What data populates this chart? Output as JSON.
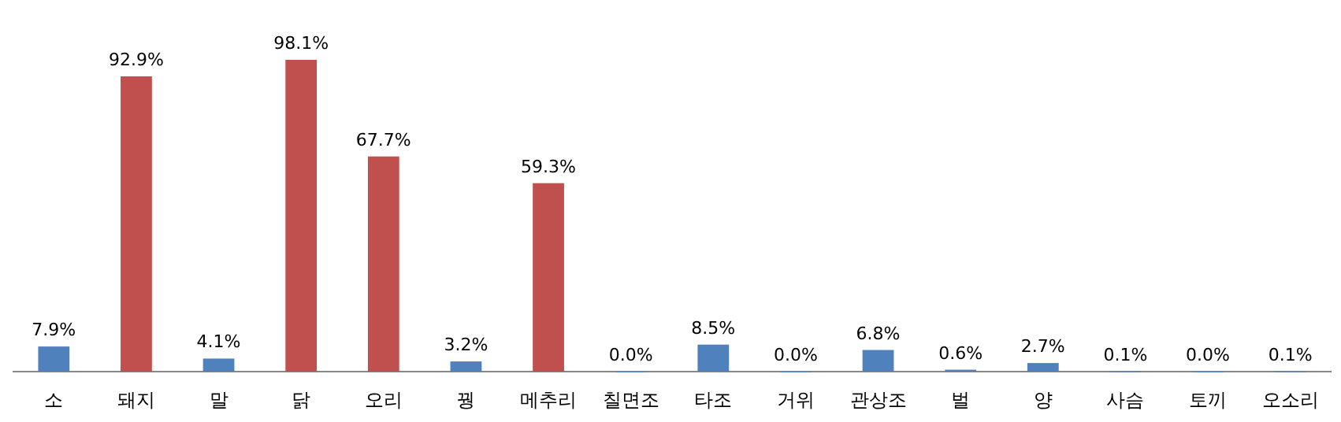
{
  "chart_data": {
    "type": "bar",
    "categories": [
      "소",
      "돼지",
      "말",
      "닭",
      "오리",
      "꿩",
      "메추리",
      "칠면조",
      "타조",
      "거위",
      "관상조",
      "벌",
      "양",
      "사슴",
      "토끼",
      "오소리"
    ],
    "values": [
      7.9,
      92.9,
      4.1,
      98.1,
      67.7,
      3.2,
      59.3,
      0.0,
      8.5,
      0.0,
      6.8,
      0.6,
      2.7,
      0.1,
      0.0,
      0.1
    ],
    "value_labels": [
      "7.9%",
      "92.9%",
      "4.1%",
      "98.1%",
      "67.7%",
      "3.2%",
      "59.3%",
      "0.0%",
      "8.5%",
      "0.0%",
      "6.8%",
      "0.6%",
      "2.7%",
      "0.1%",
      "0.0%",
      "0.1%"
    ],
    "colors": [
      "#4f81bd",
      "#c0504d",
      "#4f81bd",
      "#c0504d",
      "#c0504d",
      "#4f81bd",
      "#c0504d",
      "#4f81bd",
      "#4f81bd",
      "#4f81bd",
      "#4f81bd",
      "#4f81bd",
      "#4f81bd",
      "#4f81bd",
      "#4f81bd",
      "#4f81bd"
    ]
  }
}
